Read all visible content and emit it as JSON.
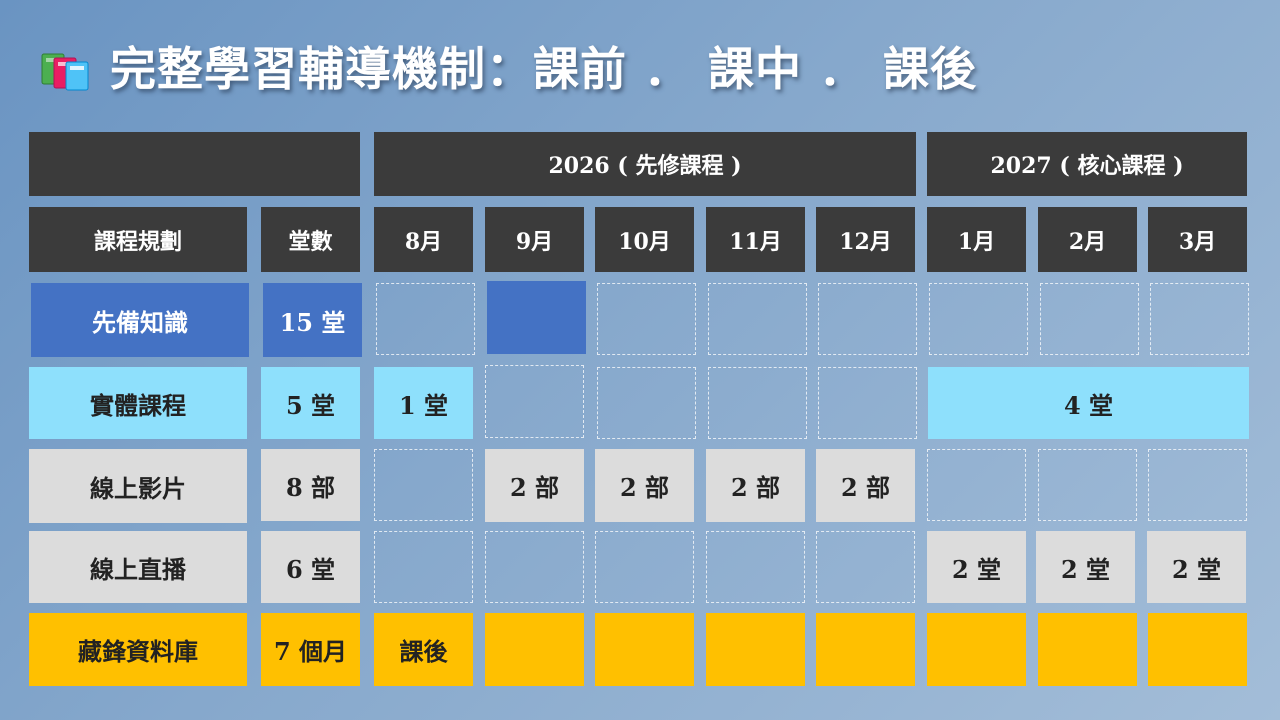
{
  "title": "完整學習輔導機制：課前 ． 課中 ． 課後",
  "icon": "books-icon",
  "colors": {
    "header": "#3b3b3b",
    "prerequisite": "#4472c4",
    "physical": "#8ee0fc",
    "video": "#dcdcdc",
    "live": "#dcdcdc",
    "database": "#ffc000"
  },
  "years": {
    "y2026": "2026 ( 先修課程 )",
    "y2027": "2027 ( 核心課程 )"
  },
  "headers": {
    "plan": "課程規劃",
    "count": "堂數",
    "months": [
      "8月",
      "9月",
      "10月",
      "11月",
      "12月",
      "1月",
      "2月",
      "3月"
    ]
  },
  "rows": {
    "prerequisite": {
      "label": "先備知識",
      "count": "15 堂"
    },
    "physical": {
      "label": "實體課程",
      "count": "5 堂",
      "aug": "1 堂",
      "core": "4 堂"
    },
    "video": {
      "label": "線上影片",
      "count": "8 部",
      "sep": "2 部",
      "oct": "2 部",
      "nov": "2 部",
      "dec": "2 部"
    },
    "live": {
      "label": "線上直播",
      "count": "6 堂",
      "jan": "2 堂",
      "feb": "2 堂",
      "mar": "2 堂"
    },
    "database": {
      "label": "藏鋒資料庫",
      "count": "7 個月",
      "aug": "課後"
    }
  }
}
